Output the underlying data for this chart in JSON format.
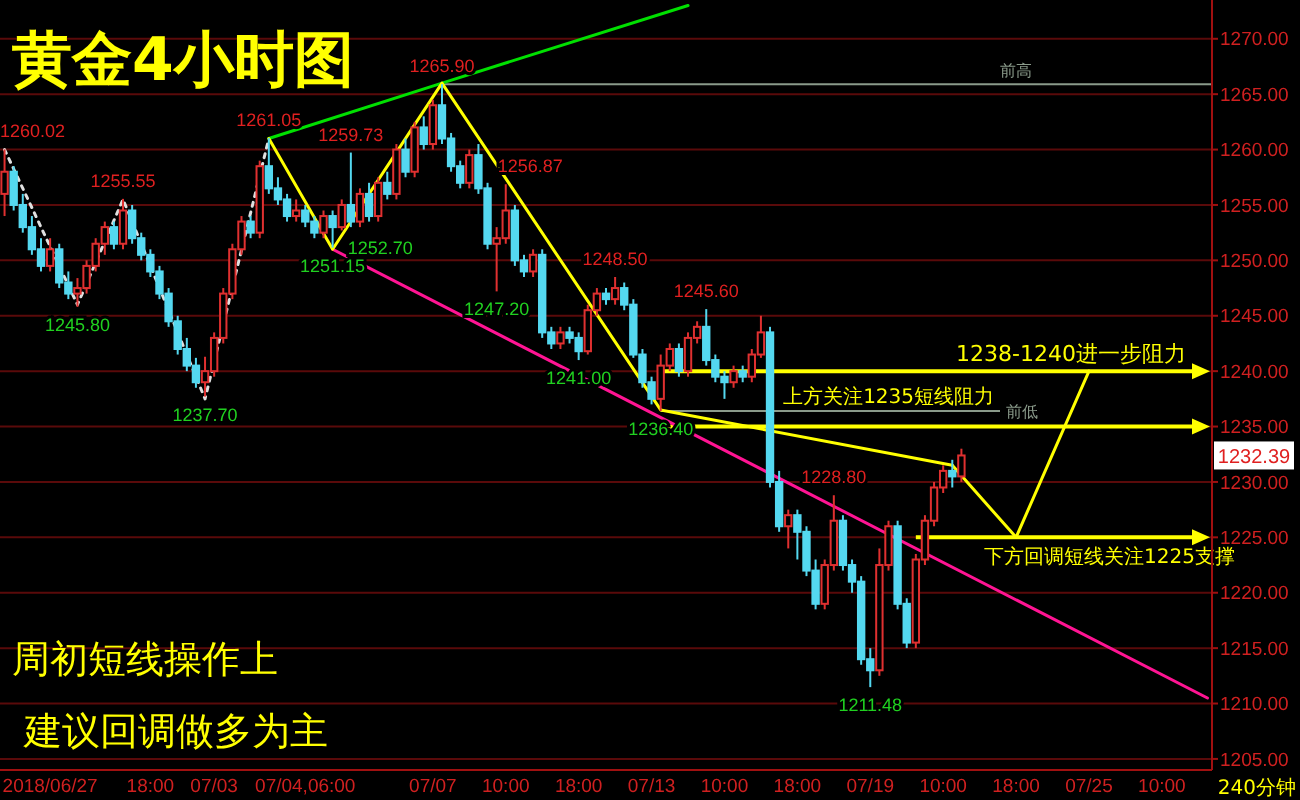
{
  "chart_data": {
    "type": "candlestick",
    "title": "黄金4小时图",
    "categories": [
      null,
      null,
      null,
      null,
      null,
      "2018/06/27",
      null,
      null,
      null,
      null,
      null,
      null,
      null,
      null,
      null,
      null,
      "18:00",
      null,
      null,
      null,
      null,
      null,
      null,
      "07/03",
      null,
      null,
      null,
      null,
      null,
      null,
      null,
      null,
      null,
      "07/04,06:00",
      null,
      null,
      null,
      null,
      null,
      null,
      null,
      null,
      null,
      null,
      null,
      null,
      null,
      "07/07",
      null,
      null,
      null,
      null,
      null,
      null,
      null,
      "10:00",
      null,
      null,
      null,
      null,
      null,
      null,
      null,
      "18:00",
      null,
      null,
      null,
      null,
      null,
      null,
      null,
      "07/13",
      null,
      null,
      null,
      null,
      null,
      null,
      null,
      "10:00",
      null,
      null,
      null,
      null,
      null,
      null,
      null,
      "18:00",
      null,
      null,
      null,
      null,
      null,
      null,
      null,
      "07/19",
      null,
      null,
      null,
      null,
      null,
      null,
      null,
      "10:00",
      null,
      null,
      null,
      null,
      null,
      null,
      null,
      "18:00",
      null,
      null,
      null,
      null,
      null,
      null,
      null,
      "07/25",
      null,
      null,
      null,
      null,
      null,
      null,
      null,
      "10:00",
      null,
      null,
      null,
      null,
      null
    ],
    "ohlc": [
      [
        1256,
        1260.02,
        1254,
        1258
      ],
      [
        1258,
        1258.5,
        1254.5,
        1255
      ],
      [
        1255,
        1256,
        1252.5,
        1253
      ],
      [
        1253,
        1254,
        1250.5,
        1251
      ],
      [
        1251,
        1252,
        1249,
        1249.5
      ],
      [
        1249.5,
        1252,
        1249,
        1251
      ],
      [
        1251,
        1251.5,
        1247.5,
        1248
      ],
      [
        1248,
        1249,
        1246.5,
        1247
      ],
      [
        1247,
        1248.4,
        1245.8,
        1247.5
      ],
      [
        1247.5,
        1250,
        1247,
        1249.5
      ],
      [
        1249.5,
        1252,
        1249,
        1251.5
      ],
      [
        1251.5,
        1253.5,
        1250.5,
        1253
      ],
      [
        1253,
        1253.5,
        1251,
        1251.5
      ],
      [
        1251.5,
        1255.55,
        1251,
        1254.5
      ],
      [
        1254.5,
        1255,
        1251.5,
        1252
      ],
      [
        1252,
        1252.5,
        1250,
        1250.5
      ],
      [
        1250.5,
        1251,
        1248.5,
        1249
      ],
      [
        1249,
        1249.5,
        1246.5,
        1247
      ],
      [
        1247,
        1247.5,
        1244,
        1244.5
      ],
      [
        1244.5,
        1245,
        1241.5,
        1242
      ],
      [
        1242,
        1243,
        1240,
        1240.5
      ],
      [
        1240.5,
        1241.2,
        1238.5,
        1239
      ],
      [
        1239,
        1241.3,
        1237.7,
        1240
      ],
      [
        1240,
        1243.5,
        1239.5,
        1243
      ],
      [
        1243,
        1247.5,
        1242.5,
        1247
      ],
      [
        1247,
        1251.5,
        1246.5,
        1251
      ],
      [
        1251,
        1254,
        1250.5,
        1253.5
      ],
      [
        1253.5,
        1254,
        1252,
        1252.5
      ],
      [
        1252.5,
        1259,
        1252,
        1258.5
      ],
      [
        1258.5,
        1261.05,
        1256,
        1256.5
      ],
      [
        1256.5,
        1257.5,
        1255,
        1255.5
      ],
      [
        1255.5,
        1256,
        1253.5,
        1254
      ],
      [
        1254,
        1255.5,
        1253.5,
        1254.5
      ],
      [
        1254.5,
        1255,
        1253,
        1253.5
      ],
      [
        1253.5,
        1254,
        1252,
        1252.5
      ],
      [
        1252.5,
        1254.5,
        1252,
        1254
      ],
      [
        1254,
        1254.5,
        1251.15,
        1253
      ],
      [
        1253,
        1255.5,
        1252.7,
        1255
      ],
      [
        1255,
        1259.73,
        1253,
        1253.5
      ],
      [
        1253.5,
        1256.5,
        1253,
        1256
      ],
      [
        1256,
        1257,
        1253.5,
        1254
      ],
      [
        1254,
        1257.5,
        1253.5,
        1257
      ],
      [
        1257,
        1258,
        1255.5,
        1256
      ],
      [
        1256,
        1260.5,
        1255.5,
        1260
      ],
      [
        1260,
        1261,
        1257.5,
        1258
      ],
      [
        1258,
        1262.5,
        1257.5,
        1262
      ],
      [
        1262,
        1263,
        1260,
        1260.5
      ],
      [
        1260.5,
        1264.5,
        1260,
        1264
      ],
      [
        1264,
        1265.9,
        1260.5,
        1261
      ],
      [
        1261,
        1261.5,
        1258,
        1258.5
      ],
      [
        1258.5,
        1259,
        1256.5,
        1257
      ],
      [
        1257,
        1260,
        1256.5,
        1259.5
      ],
      [
        1259.5,
        1260.5,
        1256,
        1256.5
      ],
      [
        1256.5,
        1257,
        1251,
        1251.5
      ],
      [
        1251.5,
        1253,
        1247.2,
        1252
      ],
      [
        1252,
        1256.87,
        1251.5,
        1254.5
      ],
      [
        1254.5,
        1255,
        1249.5,
        1250
      ],
      [
        1250,
        1250.5,
        1248.5,
        1249
      ],
      [
        1249,
        1251,
        1248.5,
        1250.5
      ],
      [
        1250.5,
        1251,
        1243,
        1243.5
      ],
      [
        1243.5,
        1244,
        1242,
        1242.5
      ],
      [
        1242.5,
        1244,
        1242,
        1243.5
      ],
      [
        1243.5,
        1244,
        1242.5,
        1243
      ],
      [
        1243,
        1243.5,
        1241,
        1241.8
      ],
      [
        1241.8,
        1246,
        1241.5,
        1245.5
      ],
      [
        1245.5,
        1247.5,
        1245,
        1247
      ],
      [
        1247,
        1247.5,
        1246,
        1246.5
      ],
      [
        1246.5,
        1248.5,
        1246,
        1247.5
      ],
      [
        1247.5,
        1248,
        1245.5,
        1246
      ],
      [
        1246,
        1246.5,
        1241.2,
        1241.5
      ],
      [
        1241.5,
        1242,
        1238.5,
        1239
      ],
      [
        1239,
        1239.5,
        1237,
        1237.5
      ],
      [
        1237.5,
        1241.5,
        1236.4,
        1240.5
      ],
      [
        1240.5,
        1242.5,
        1240,
        1242
      ],
      [
        1242,
        1242.5,
        1239.5,
        1240
      ],
      [
        1240,
        1243.5,
        1239.5,
        1243
      ],
      [
        1243,
        1244.5,
        1242.5,
        1244
      ],
      [
        1244,
        1245.6,
        1240.5,
        1241
      ],
      [
        1241,
        1241.5,
        1239,
        1239.5
      ],
      [
        1239.5,
        1240,
        1237.5,
        1239
      ],
      [
        1239,
        1240.5,
        1238.5,
        1240
      ],
      [
        1240,
        1240.5,
        1239,
        1239.5
      ],
      [
        1239.5,
        1242,
        1239,
        1241.5
      ],
      [
        1241.5,
        1245,
        1241.2,
        1243.5
      ],
      [
        1243.5,
        1244,
        1229.5,
        1230
      ],
      [
        1230,
        1231,
        1225.5,
        1226
      ],
      [
        1226,
        1227.5,
        1224,
        1227
      ],
      [
        1227,
        1227.5,
        1223,
        1225.5
      ],
      [
        1225.5,
        1226,
        1221.5,
        1222
      ],
      [
        1222,
        1223,
        1218.5,
        1219
      ],
      [
        1219,
        1223,
        1218.5,
        1222.5
      ],
      [
        1222.5,
        1228.8,
        1222,
        1226.5
      ],
      [
        1226.5,
        1227,
        1222,
        1222.5
      ],
      [
        1222.5,
        1223,
        1220,
        1221
      ],
      [
        1221,
        1221.5,
        1213.5,
        1214
      ],
      [
        1214,
        1215,
        1211.48,
        1213
      ],
      [
        1213,
        1224,
        1212.5,
        1222.5
      ],
      [
        1222.5,
        1226.5,
        1222,
        1226
      ],
      [
        1226,
        1226.5,
        1218.5,
        1219
      ],
      [
        1219,
        1219.5,
        1215,
        1215.5
      ],
      [
        1215.5,
        1223.5,
        1215,
        1223
      ],
      [
        1223,
        1227,
        1222.5,
        1226.5
      ],
      [
        1226.5,
        1230,
        1226,
        1229.5
      ],
      [
        1229.5,
        1231.5,
        1229,
        1231
      ],
      [
        1231,
        1232,
        1229.5,
        1230.5
      ],
      [
        1230.5,
        1233,
        1230,
        1232.39
      ],
      null,
      null,
      null,
      null,
      null,
      null,
      null,
      null,
      null,
      null,
      null,
      null,
      null,
      null,
      null,
      null,
      null,
      null,
      null,
      null,
      null,
      null,
      null,
      null,
      null,
      null,
      null
    ],
    "series": [
      {
        "type": "line",
        "color": "#00e000",
        "line_style": "solid",
        "values": [
          null,
          null,
          null,
          null,
          null,
          null,
          null,
          null,
          null,
          null,
          null,
          null,
          null,
          null,
          null,
          null,
          null,
          null,
          null,
          null,
          null,
          null,
          null,
          null,
          null,
          null,
          null,
          null,
          null,
          1261,
          null,
          null,
          null,
          null,
          null,
          null,
          null,
          null,
          null,
          null,
          null,
          null,
          null,
          null,
          null,
          null,
          null,
          null,
          1266,
          null,
          null,
          null,
          null,
          null,
          null,
          null,
          null,
          null,
          null,
          null,
          null,
          null,
          null,
          null,
          null,
          null,
          null,
          null,
          null,
          null,
          null,
          null,
          null,
          null,
          null,
          1273,
          null,
          null,
          null,
          null,
          null,
          null,
          null,
          null,
          null,
          null,
          null,
          null,
          null,
          null,
          null,
          null,
          null,
          null,
          null,
          null,
          null,
          null,
          null,
          null,
          null,
          null,
          null,
          null,
          null,
          null,
          null,
          null,
          null,
          null,
          null,
          null,
          null,
          null,
          null,
          null,
          null,
          null,
          null,
          null,
          null,
          null,
          null,
          null,
          null,
          null,
          null,
          null,
          null,
          null,
          null,
          null,
          null
        ]
      },
      {
        "type": "line",
        "color": "#ff1493",
        "line_style": "solid",
        "values": [
          null,
          null,
          null,
          null,
          null,
          null,
          null,
          null,
          null,
          null,
          null,
          null,
          null,
          null,
          null,
          null,
          null,
          null,
          null,
          null,
          null,
          null,
          null,
          null,
          null,
          null,
          null,
          null,
          null,
          null,
          null,
          null,
          null,
          null,
          null,
          null,
          1251,
          null,
          null,
          null,
          null,
          null,
          null,
          null,
          null,
          null,
          null,
          null,
          null,
          null,
          null,
          null,
          null,
          null,
          null,
          null,
          null,
          null,
          null,
          null,
          null,
          null,
          null,
          null,
          null,
          null,
          null,
          null,
          null,
          null,
          null,
          null,
          null,
          null,
          null,
          null,
          null,
          null,
          null,
          null,
          null,
          null,
          null,
          null,
          null,
          null,
          null,
          null,
          null,
          null,
          null,
          null,
          null,
          null,
          null,
          null,
          null,
          null,
          null,
          null,
          null,
          null,
          null,
          null,
          null,
          null,
          null,
          null,
          null,
          null,
          null,
          null,
          null,
          null,
          null,
          null,
          null,
          null,
          null,
          null,
          null,
          null,
          null,
          null,
          null,
          null,
          null,
          null,
          null,
          null,
          null,
          null,
          1210.5
        ]
      },
      {
        "type": "line",
        "color": "#ffff00",
        "line_style": "solid",
        "values": [
          null,
          null,
          null,
          null,
          null,
          null,
          null,
          null,
          null,
          null,
          null,
          null,
          null,
          null,
          null,
          null,
          null,
          null,
          null,
          null,
          null,
          null,
          null,
          null,
          null,
          null,
          null,
          null,
          null,
          1261,
          null,
          null,
          null,
          null,
          null,
          null,
          1251,
          null,
          null,
          null,
          null,
          null,
          null,
          null,
          null,
          null,
          null,
          null,
          1266,
          null,
          null,
          null,
          null,
          null,
          null,
          null,
          null,
          null,
          null,
          null,
          null,
          null,
          null,
          null,
          null,
          null,
          null,
          null,
          null,
          null,
          null,
          null,
          1236.5,
          null,
          null,
          null,
          null,
          null,
          null,
          null,
          null,
          null,
          null,
          null,
          null,
          null,
          null,
          null,
          null,
          null,
          null,
          null,
          null,
          null,
          null,
          null,
          null,
          null,
          null,
          null,
          null,
          null,
          null,
          null,
          1231.5,
          null,
          null,
          null,
          null,
          null,
          null,
          null,
          null,
          null,
          null,
          null,
          null,
          null,
          null,
          null,
          null,
          null,
          null,
          null,
          null,
          null,
          null,
          null,
          null,
          null,
          null,
          null,
          null
        ]
      },
      {
        "type": "line",
        "color": "#ffff00",
        "line_style": "solid",
        "values": [
          null,
          null,
          null,
          null,
          null,
          null,
          null,
          null,
          null,
          null,
          null,
          null,
          null,
          null,
          null,
          null,
          null,
          null,
          null,
          null,
          null,
          null,
          null,
          null,
          null,
          null,
          null,
          null,
          null,
          null,
          null,
          null,
          null,
          null,
          null,
          null,
          null,
          null,
          null,
          null,
          null,
          null,
          null,
          null,
          null,
          null,
          null,
          null,
          null,
          null,
          null,
          null,
          null,
          null,
          null,
          null,
          null,
          null,
          null,
          null,
          null,
          null,
          null,
          null,
          null,
          null,
          null,
          null,
          null,
          null,
          null,
          null,
          null,
          null,
          null,
          null,
          null,
          null,
          null,
          null,
          null,
          null,
          null,
          null,
          null,
          null,
          null,
          null,
          null,
          null,
          null,
          null,
          null,
          null,
          null,
          null,
          null,
          null,
          null,
          null,
          null,
          null,
          null,
          null,
          1231.5,
          null,
          null,
          null,
          null,
          null,
          null,
          1225,
          null,
          null,
          null,
          null,
          null,
          null,
          null,
          1240,
          null,
          null,
          null,
          null,
          null,
          null,
          null,
          null,
          null,
          null,
          null,
          null,
          null
        ]
      },
      {
        "type": "line",
        "color": "#e0e0e0",
        "line_style": "dotted",
        "values": [
          1260,
          null,
          null,
          null,
          null,
          null,
          null,
          null,
          1246,
          null,
          null,
          null,
          null,
          1255.5,
          null,
          null,
          null,
          null,
          null,
          null,
          null,
          null,
          1237.5,
          null,
          null,
          null,
          null,
          null,
          null,
          1261,
          null,
          null,
          null,
          null,
          null,
          null,
          null,
          null,
          null,
          null,
          null,
          null,
          null,
          null,
          null,
          null,
          null,
          null,
          null,
          null,
          null,
          null,
          null,
          null,
          null,
          null,
          null,
          null,
          null,
          null,
          null,
          null,
          null,
          null,
          null,
          null,
          null,
          null,
          null,
          null,
          null,
          null,
          null,
          null,
          null,
          null,
          null,
          null,
          null,
          null,
          null,
          null,
          null,
          null,
          null,
          null,
          null,
          null,
          null,
          null,
          null,
          null,
          null,
          null,
          null,
          null,
          null,
          null,
          null,
          null,
          null,
          null,
          null,
          null,
          null,
          null,
          null,
          null,
          null,
          null,
          null,
          null,
          null,
          null,
          null,
          null,
          null,
          null,
          null,
          null,
          null,
          null,
          null,
          null,
          null,
          null,
          null,
          null,
          null,
          null,
          null,
          null,
          null
        ]
      }
    ],
    "ref_lines": [
      {
        "axis": "y",
        "value": 1265.9,
        "label": "前高",
        "color": "#8a9a8a"
      },
      {
        "axis": "y",
        "value": 1236.4,
        "label": "前低",
        "color": "#8a9a8a"
      },
      {
        "axis": "y",
        "value": 1240,
        "label": "1238-1240进一步阻力",
        "color": "#ffff00"
      },
      {
        "axis": "y",
        "value": 1235,
        "label": "上方关注1235短线阻力",
        "color": "#ffff00"
      },
      {
        "axis": "y",
        "value": 1225,
        "label": "下方回调短线关注1225支撑",
        "color": "#ffff00"
      }
    ],
    "annotations": [
      "周初短线操作上",
      "建议回调做多为主",
      "240分钟",
      {
        "text": "1232.39",
        "y": 1232.39
      },
      "1260.02",
      {
        "text": "1245.80",
        "y": 1245.8
      },
      {
        "text": "1255.55",
        "y": 1255.55
      },
      {
        "text": "1237.70",
        "y": 1237.7
      },
      {
        "text": "1261.05",
        "y": 1261.05
      },
      {
        "text": "1251.15",
        "y": 1251.15
      },
      {
        "text": "1252.70",
        "y": 1252.7
      },
      {
        "text": "1259.73",
        "y": 1259.73
      },
      {
        "text": "1265.90",
        "y": 1265.9
      },
      "1256.87",
      {
        "text": "1247.20",
        "y": 1247.2
      },
      {
        "text": "1248.50",
        "y": 1248.5
      },
      {
        "text": "1241.00",
        "y": 1241
      },
      {
        "text": "1245.60",
        "y": 1245.6
      },
      {
        "text": "1236.40",
        "y": 1236.4
      },
      {
        "text": "1228.80",
        "y": 1228.8
      },
      {
        "text": "1211.48",
        "y": 1211.48
      }
    ],
    "ylim": [
      1204,
      1273.5
    ],
    "yticks": [
      {
        "value": 1205,
        "label": "1205.00"
      },
      {
        "value": 1210,
        "label": "1210.00"
      },
      {
        "value": 1215,
        "label": "1215.00"
      },
      {
        "value": 1220,
        "label": "1220.00"
      },
      {
        "value": 1225,
        "label": "1225.00"
      },
      {
        "value": 1230,
        "label": "1230.00"
      },
      {
        "value": 1235,
        "label": "1235.00"
      },
      {
        "value": 1240,
        "label": "1240.00"
      },
      {
        "value": 1245,
        "label": "1245.00"
      },
      {
        "value": 1250,
        "label": "1250.00"
      },
      {
        "value": 1255,
        "label": "1255.00"
      },
      {
        "value": 1260,
        "label": "1260.00"
      },
      {
        "value": 1265,
        "label": "1265.00"
      },
      {
        "value": 1270,
        "label": "1270.00"
      }
    ],
    "grid": "y"
  }
}
